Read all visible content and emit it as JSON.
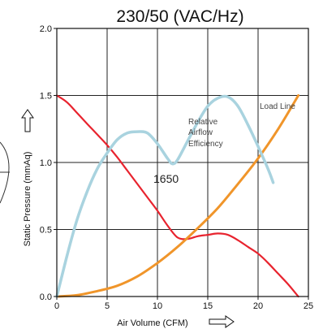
{
  "chart_data": {
    "type": "line",
    "title": "230/50 (VAC/Hz)",
    "xlabel": "Air Volume (CFM)",
    "ylabel": "Static Pressure (mmAq)",
    "xlim": [
      0,
      25
    ],
    "ylim": [
      0,
      2.0
    ],
    "xticks": [
      0,
      5,
      10,
      15,
      20,
      25
    ],
    "yticks": [
      0.0,
      0.5,
      1.0,
      1.5,
      2.0
    ],
    "xtick_labels": [
      "0",
      "5",
      "10",
      "15",
      "20",
      "25"
    ],
    "ytick_labels": [
      "0.0",
      "0.5",
      "1.0",
      "1.5",
      "2.0"
    ],
    "grid": true,
    "annotations": {
      "load_line": "Load Line",
      "relative": "Relative",
      "airflow": "Airflow",
      "efficiency": "Efficiency",
      "model": "1650"
    },
    "series": [
      {
        "key": "pq",
        "color": "#e8232e",
        "x": [
          0,
          1,
          2,
          3,
          4,
          5,
          6,
          7,
          8,
          9,
          10,
          11,
          12,
          13,
          14,
          15,
          16,
          17,
          18,
          19,
          20,
          21,
          22,
          23,
          24
        ],
        "y": [
          1.5,
          1.45,
          1.37,
          1.29,
          1.21,
          1.13,
          1.04,
          0.94,
          0.84,
          0.74,
          0.64,
          0.53,
          0.44,
          0.43,
          0.45,
          0.46,
          0.47,
          0.46,
          0.42,
          0.37,
          0.32,
          0.25,
          0.17,
          0.09,
          0.0
        ]
      },
      {
        "key": "load",
        "color": "#f0952a",
        "x": [
          0,
          2,
          4,
          6,
          8,
          10,
          12,
          14,
          16,
          18,
          20,
          22,
          24
        ],
        "y": [
          0.0,
          0.01,
          0.04,
          0.08,
          0.15,
          0.25,
          0.37,
          0.51,
          0.66,
          0.84,
          1.03,
          1.25,
          1.5
        ]
      },
      {
        "key": "efficiency",
        "color": "#a9d3df",
        "x": [
          0,
          1,
          2,
          3,
          4,
          5,
          6,
          7,
          8,
          9,
          10,
          11,
          11.5,
          12,
          13,
          14,
          15,
          16,
          17,
          18,
          19,
          20,
          21,
          21.5
        ],
        "y": [
          0.0,
          0.3,
          0.57,
          0.78,
          0.95,
          1.07,
          1.17,
          1.22,
          1.23,
          1.22,
          1.14,
          1.03,
          0.99,
          1.02,
          1.16,
          1.3,
          1.42,
          1.48,
          1.49,
          1.42,
          1.28,
          1.12,
          0.95,
          0.85
        ]
      }
    ]
  }
}
